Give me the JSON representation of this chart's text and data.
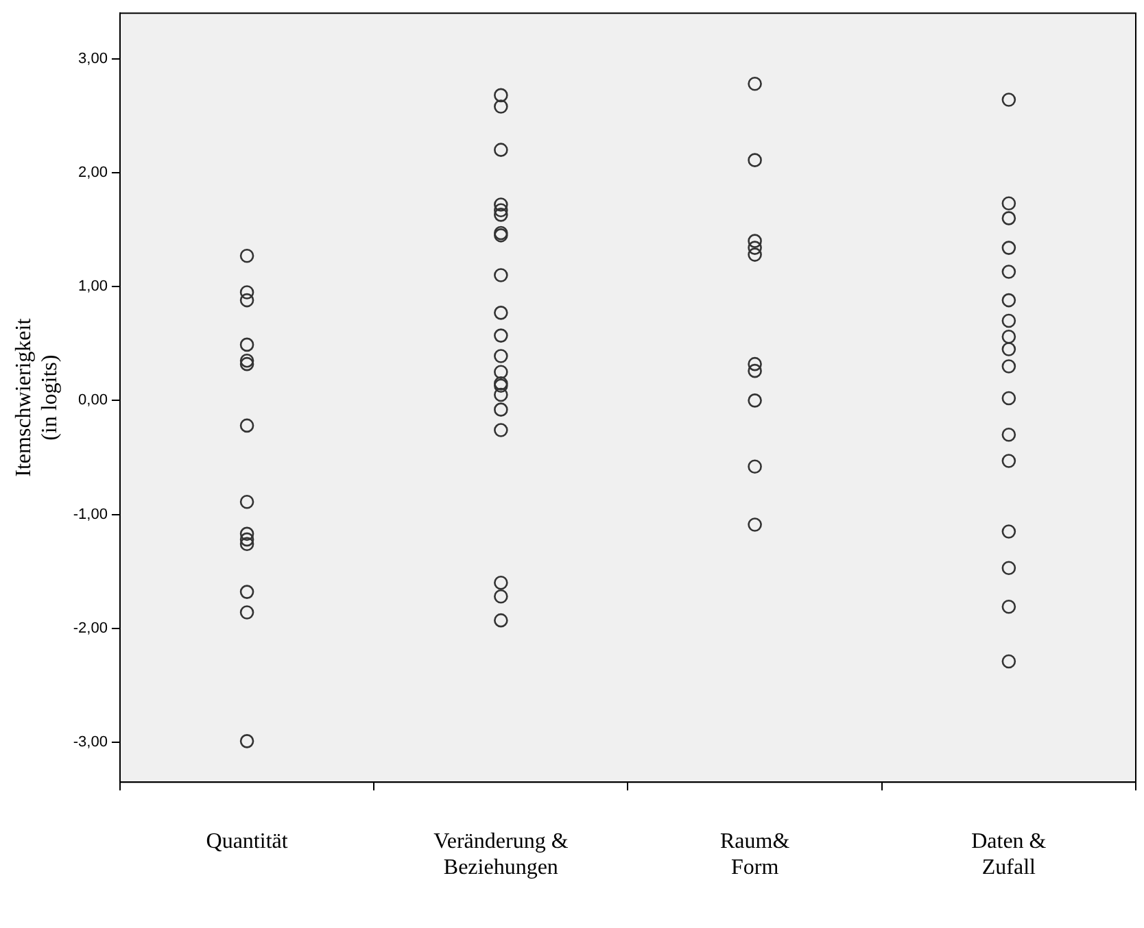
{
  "chart_data": {
    "type": "scatter",
    "ylabel": "Itemschwierigkeit\n(in logits)",
    "categories": [
      "Quantität",
      "Veränderung &\nBeziehungen",
      "Raum&\nForm",
      "Daten &\nZufall"
    ],
    "ylim": [
      -3.35,
      3.4
    ],
    "yticks": [
      {
        "value": 3,
        "label": "3,00"
      },
      {
        "value": 2,
        "label": "2,00"
      },
      {
        "value": 1,
        "label": "1,00"
      },
      {
        "value": 0,
        "label": "0,00"
      },
      {
        "value": -1,
        "label": "-1,00"
      },
      {
        "value": -2,
        "label": "-2,00"
      },
      {
        "value": -3,
        "label": "-3,00"
      }
    ],
    "grid": false,
    "legend": false,
    "marker": "circle",
    "series": [
      {
        "color": "#333333",
        "x": [
          "Quantität",
          "Quantität",
          "Quantität",
          "Quantität",
          "Quantität",
          "Quantität",
          "Quantität",
          "Quantität",
          "Quantität",
          "Quantität",
          "Quantität",
          "Quantität",
          "Quantität",
          "Quantität"
        ],
        "values": [
          1.27,
          0.95,
          0.88,
          0.49,
          0.35,
          0.32,
          -0.22,
          -0.89,
          -1.17,
          -1.22,
          -1.26,
          -1.68,
          -1.86,
          -2.99
        ]
      },
      {
        "color": "#333333",
        "x": [
          "Veränderung &\nBeziehungen",
          "Veränderung &\nBeziehungen",
          "Veränderung &\nBeziehungen",
          "Veränderung &\nBeziehungen",
          "Veränderung &\nBeziehungen",
          "Veränderung &\nBeziehungen",
          "Veränderung &\nBeziehungen",
          "Veränderung &\nBeziehungen",
          "Veränderung &\nBeziehungen",
          "Veränderung &\nBeziehungen",
          "Veränderung &\nBeziehungen",
          "Veränderung &\nBeziehungen",
          "Veränderung &\nBeziehungen",
          "Veränderung &\nBeziehungen",
          "Veränderung &\nBeziehungen",
          "Veränderung &\nBeziehungen",
          "Veränderung &\nBeziehungen",
          "Veränderung &\nBeziehungen",
          "Veränderung &\nBeziehungen",
          "Veränderung &\nBeziehungen",
          "Veränderung &\nBeziehungen"
        ],
        "values": [
          2.68,
          2.58,
          2.2,
          1.72,
          1.67,
          1.63,
          1.47,
          1.45,
          1.1,
          0.77,
          0.57,
          0.39,
          0.25,
          0.15,
          0.13,
          0.05,
          -0.08,
          -0.26,
          -1.6,
          -1.72,
          -1.93
        ]
      },
      {
        "color": "#333333",
        "x": [
          "Raum&\nForm",
          "Raum&\nForm",
          "Raum&\nForm",
          "Raum&\nForm",
          "Raum&\nForm",
          "Raum&\nForm",
          "Raum&\nForm",
          "Raum&\nForm",
          "Raum&\nForm",
          "Raum&\nForm"
        ],
        "values": [
          2.78,
          2.11,
          1.4,
          1.34,
          1.28,
          0.32,
          0.26,
          0.0,
          -0.58,
          -1.09
        ]
      },
      {
        "color": "#333333",
        "x": [
          "Daten &\nZufall",
          "Daten &\nZufall",
          "Daten &\nZufall",
          "Daten &\nZufall",
          "Daten &\nZufall",
          "Daten &\nZufall",
          "Daten &\nZufall",
          "Daten &\nZufall",
          "Daten &\nZufall",
          "Daten &\nZufall",
          "Daten &\nZufall",
          "Daten &\nZufall",
          "Daten &\nZufall",
          "Daten &\nZufall",
          "Daten &\nZufall",
          "Daten &\nZufall",
          "Daten &\nZufall"
        ],
        "values": [
          2.64,
          1.73,
          1.6,
          1.34,
          1.13,
          0.88,
          0.7,
          0.56,
          0.45,
          0.3,
          0.02,
          -0.3,
          -0.53,
          -1.15,
          -1.47,
          -1.81,
          -2.29
        ]
      }
    ]
  }
}
